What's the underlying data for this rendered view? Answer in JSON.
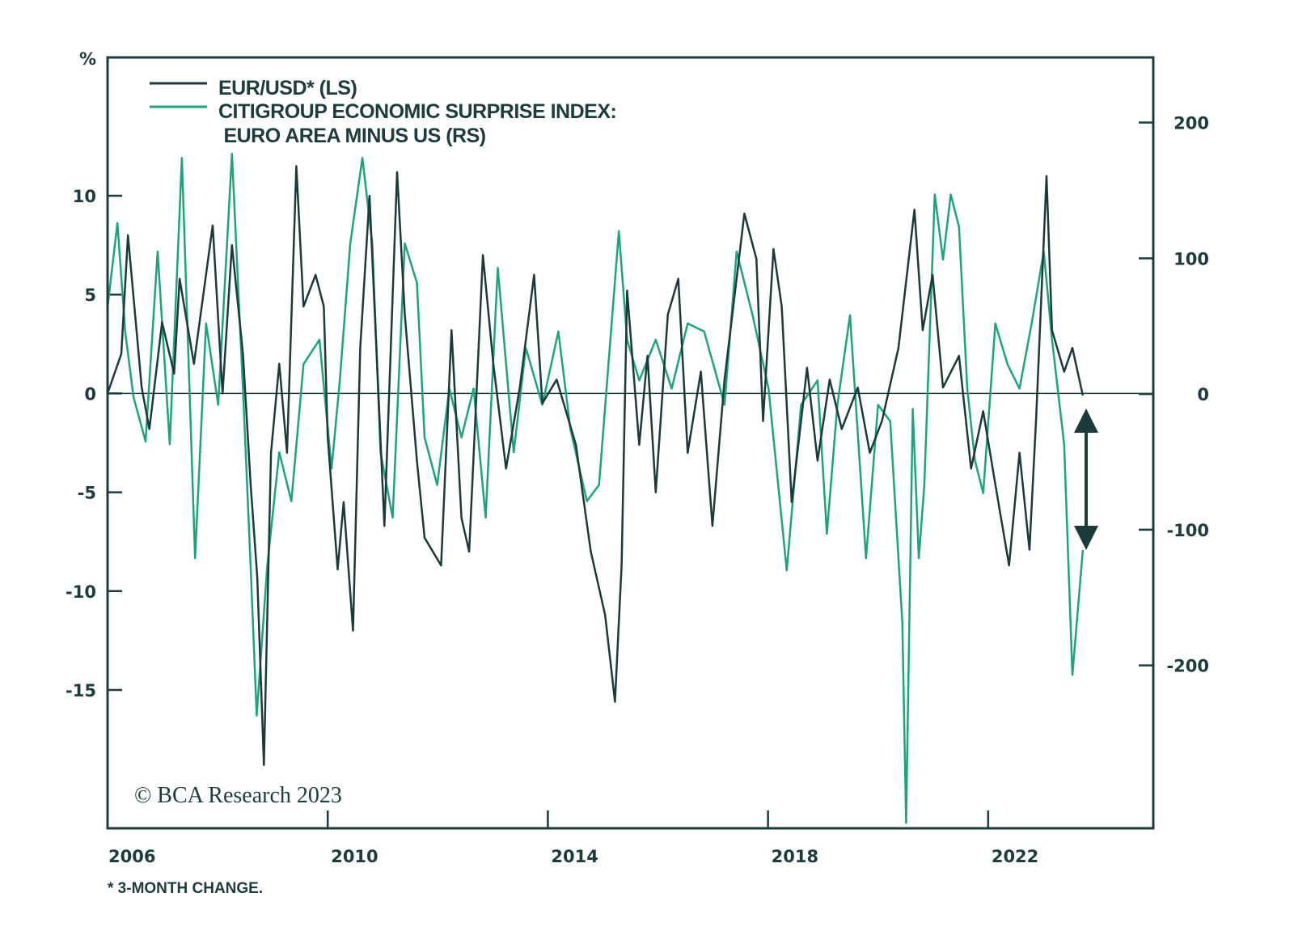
{
  "chart_data": {
    "type": "line",
    "left_axis_label": "%",
    "legend_placement": "top-left",
    "footnote": "* 3-MONTH CHANGE.",
    "copyright": "© BCA Research 2023",
    "xlim": [
      2006,
      2025
    ],
    "x_ticks": [
      2006,
      2010,
      2014,
      2018,
      2022
    ],
    "x_tick_labels": [
      "2006",
      "2010",
      "2014",
      "2018",
      "2022"
    ],
    "y_left": {
      "lim": [
        -22,
        17
      ],
      "ticks": [
        10,
        5,
        0,
        -5,
        -10,
        -15
      ],
      "tick_labels": [
        "10",
        "5",
        "0",
        "-5",
        "-10",
        "-15"
      ]
    },
    "y_right": {
      "lim": [
        -320,
        248
      ],
      "ticks": [
        200,
        100,
        0,
        -100,
        -200
      ],
      "tick_labels": [
        "200",
        "100",
        "0",
        "-100",
        "-200"
      ]
    },
    "zero_line": true,
    "annotation": "double-headed arrow between the two series at end of 2023",
    "colors": {
      "eurusd": "#1d3a3b",
      "surprise": "#1fa37f",
      "frame": "#1e3b3d"
    },
    "series": [
      {
        "name": "EUR/USD* (LS)",
        "axis": "left",
        "x": [
          2006.0,
          2006.25,
          2006.37,
          2006.62,
          2006.76,
          2006.99,
          2007.21,
          2007.31,
          2007.57,
          2007.91,
          2008.09,
          2008.26,
          2008.46,
          2008.6,
          2008.72,
          2008.84,
          2008.97,
          2009.12,
          2009.26,
          2009.43,
          2009.56,
          2009.78,
          2009.93,
          2010.0,
          2010.18,
          2010.29,
          2010.46,
          2010.59,
          2010.76,
          2011.03,
          2011.26,
          2011.4,
          2011.62,
          2011.76,
          2012.06,
          2012.25,
          2012.43,
          2012.57,
          2012.82,
          2013.01,
          2013.24,
          2013.49,
          2013.75,
          2013.9,
          2014.16,
          2014.51,
          2014.78,
          2015.04,
          2015.22,
          2015.34,
          2015.44,
          2015.66,
          2015.81,
          2015.96,
          2016.18,
          2016.37,
          2016.54,
          2016.78,
          2016.99,
          2017.21,
          2017.57,
          2017.79,
          2017.91,
          2018.1,
          2018.25,
          2018.43,
          2018.6,
          2018.71,
          2018.9,
          2019.12,
          2019.34,
          2019.63,
          2019.85,
          2020.07,
          2020.37,
          2020.66,
          2020.81,
          2020.99,
          2021.18,
          2021.47,
          2021.69,
          2021.91,
          2022.13,
          2022.38,
          2022.57,
          2022.75,
          2022.87,
          2023.06,
          2023.16,
          2023.38,
          2023.53,
          2023.72
        ],
        "values": [
          0,
          2,
          8,
          0.3,
          -1.8,
          3.6,
          1,
          5.8,
          1.5,
          8.5,
          0,
          7.5,
          2,
          -4.6,
          -9.3,
          -18.8,
          -3,
          1.5,
          -3,
          11.5,
          4.4,
          6,
          4.4,
          -2.2,
          -8.9,
          -5.5,
          -12,
          2.3,
          10,
          -6.7,
          11.2,
          4,
          -3.4,
          -7.3,
          -8.7,
          3.2,
          -6.3,
          -8,
          7,
          1.5,
          -3.8,
          0.3,
          6,
          -0.5,
          0.7,
          -2.6,
          -8,
          -11.2,
          -15.6,
          -8.7,
          5.2,
          -2.6,
          1.9,
          -5,
          4,
          5.8,
          -3,
          1.1,
          -6.7,
          0.7,
          9.1,
          6.8,
          -1.4,
          7.3,
          4.4,
          -5.5,
          -1.4,
          1.3,
          -3.4,
          0.7,
          -1.8,
          0.3,
          -3,
          -1.4,
          2.3,
          9.3,
          3.2,
          6,
          0.3,
          1.9,
          -3.8,
          -0.9,
          -4.6,
          -8.7,
          -3,
          -7.9,
          -1.4,
          11,
          3.2,
          1.1,
          2.3,
          -0.1
        ]
      },
      {
        "name": "CITIGROUP ECONOMIC SURPRISE INDEX:\n EURO AREA MINUS US (RS)",
        "legend_lines": [
          "CITIGROUP ECONOMIC SURPRISE INDEX:",
          " EURO AREA MINUS US (RS)"
        ],
        "axis": "right",
        "x": [
          2006.0,
          2006.18,
          2006.32,
          2006.47,
          2006.69,
          2006.91,
          2007.13,
          2007.35,
          2007.59,
          2007.79,
          2008.01,
          2008.26,
          2008.46,
          2008.6,
          2008.71,
          2008.9,
          2009.12,
          2009.34,
          2009.56,
          2009.85,
          2010.07,
          2010.22,
          2010.41,
          2010.63,
          2010.81,
          2010.96,
          2011.18,
          2011.4,
          2011.62,
          2011.76,
          2011.99,
          2012.21,
          2012.43,
          2012.65,
          2012.87,
          2013.09,
          2013.38,
          2013.6,
          2013.9,
          2014.19,
          2014.41,
          2014.71,
          2014.93,
          2015.29,
          2015.44,
          2015.66,
          2015.96,
          2016.25,
          2016.54,
          2016.84,
          2017.21,
          2017.43,
          2017.72,
          2018.01,
          2018.34,
          2018.6,
          2018.9,
          2019.07,
          2019.26,
          2019.49,
          2019.78,
          2020.0,
          2020.22,
          2020.44,
          2020.51,
          2020.63,
          2020.74,
          2020.84,
          2021.03,
          2021.18,
          2021.32,
          2021.47,
          2021.62,
          2021.76,
          2021.91,
          2022.13,
          2022.35,
          2022.57,
          2022.79,
          2023.01,
          2023.16,
          2023.38,
          2023.53,
          2023.72
        ],
        "values": [
          64,
          126,
          46,
          -2,
          -35,
          105,
          -37,
          174,
          -121,
          52,
          -8,
          177,
          4,
          -127,
          -237,
          -127,
          -43,
          -79,
          22,
          40,
          -55,
          10,
          111,
          174,
          111,
          -43,
          -91,
          111,
          82,
          -32,
          -67,
          4,
          -32,
          4,
          -91,
          93,
          -43,
          34,
          -8,
          46,
          -26,
          -79,
          -67,
          120,
          40,
          10,
          40,
          4,
          52,
          46,
          -8,
          105,
          58,
          4,
          -130,
          -8,
          10,
          -103,
          -8,
          58,
          -121,
          -8,
          -20,
          -168,
          -316,
          -11,
          -121,
          -67,
          147,
          99,
          147,
          123,
          4,
          -49,
          -73,
          52,
          22,
          4,
          52,
          105,
          40,
          -37,
          -207,
          -115
        ]
      }
    ]
  }
}
